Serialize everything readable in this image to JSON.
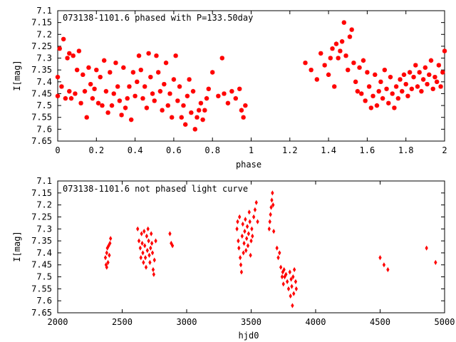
{
  "chart_data": [
    {
      "type": "scatter",
      "title": "073138-1101.6 phased with P=133.50day",
      "xlabel": "phase",
      "ylabel": "I[mag]",
      "xlim": [
        0,
        2
      ],
      "ylim": [
        7.1,
        7.65
      ],
      "y_inverted": true,
      "x_ticks": [
        "0",
        "0.2",
        "0.4",
        "0.6",
        "0.8",
        "1",
        "1.2",
        "1.4",
        "1.6",
        "1.8",
        "2"
      ],
      "y_ticks": [
        "7.1",
        "7.15",
        "7.2",
        "7.25",
        "7.3",
        "7.35",
        "7.4",
        "7.45",
        "7.5",
        "7.55",
        "7.6",
        "7.65"
      ],
      "marker_color": "#ff0000",
      "series": [
        {
          "points": [
            [
              0.0,
              7.38
            ],
            [
              0.0,
              7.46
            ],
            [
              0.01,
              7.26
            ],
            [
              0.02,
              7.42
            ],
            [
              0.03,
              7.22
            ],
            [
              0.04,
              7.47
            ],
            [
              0.05,
              7.3
            ],
            [
              0.06,
              7.28
            ],
            [
              0.06,
              7.44
            ],
            [
              0.07,
              7.47
            ],
            [
              0.08,
              7.29
            ],
            [
              0.09,
              7.45
            ],
            [
              0.1,
              7.35
            ],
            [
              0.11,
              7.27
            ],
            [
              0.12,
              7.49
            ],
            [
              0.13,
              7.37
            ],
            [
              0.14,
              7.44
            ],
            [
              0.15,
              7.55
            ],
            [
              0.16,
              7.34
            ],
            [
              0.17,
              7.41
            ],
            [
              0.18,
              7.47
            ],
            [
              0.19,
              7.43
            ],
            [
              0.2,
              7.35
            ],
            [
              0.21,
              7.49
            ],
            [
              0.22,
              7.38
            ],
            [
              0.23,
              7.5
            ],
            [
              0.24,
              7.31
            ],
            [
              0.25,
              7.44
            ],
            [
              0.26,
              7.53
            ],
            [
              0.27,
              7.36
            ],
            [
              0.28,
              7.5
            ],
            [
              0.29,
              7.45
            ],
            [
              0.3,
              7.32
            ],
            [
              0.31,
              7.42
            ],
            [
              0.32,
              7.48
            ],
            [
              0.33,
              7.54
            ],
            [
              0.34,
              7.34
            ],
            [
              0.35,
              7.51
            ],
            [
              0.36,
              7.47
            ],
            [
              0.37,
              7.42
            ],
            [
              0.38,
              7.56
            ],
            [
              0.39,
              7.36
            ],
            [
              0.4,
              7.46
            ],
            [
              0.41,
              7.4
            ],
            [
              0.42,
              7.29
            ],
            [
              0.43,
              7.35
            ],
            [
              0.44,
              7.47
            ],
            [
              0.45,
              7.42
            ],
            [
              0.46,
              7.51
            ],
            [
              0.47,
              7.28
            ],
            [
              0.48,
              7.38
            ],
            [
              0.49,
              7.45
            ],
            [
              0.5,
              7.48
            ],
            [
              0.51,
              7.29
            ],
            [
              0.52,
              7.36
            ],
            [
              0.53,
              7.44
            ],
            [
              0.54,
              7.52
            ],
            [
              0.55,
              7.41
            ],
            [
              0.56,
              7.32
            ],
            [
              0.57,
              7.5
            ],
            [
              0.58,
              7.45
            ],
            [
              0.59,
              7.55
            ],
            [
              0.6,
              7.39
            ],
            [
              0.61,
              7.29
            ],
            [
              0.62,
              7.48
            ],
            [
              0.63,
              7.42
            ],
            [
              0.64,
              7.55
            ],
            [
              0.65,
              7.5
            ],
            [
              0.66,
              7.58
            ],
            [
              0.67,
              7.46
            ],
            [
              0.68,
              7.39
            ],
            [
              0.69,
              7.53
            ],
            [
              0.7,
              7.44
            ],
            [
              0.71,
              7.6
            ],
            [
              0.72,
              7.55
            ],
            [
              0.73,
              7.52
            ],
            [
              0.74,
              7.49
            ],
            [
              0.75,
              7.56
            ],
            [
              0.76,
              7.52
            ],
            [
              0.77,
              7.47
            ],
            [
              0.78,
              7.43
            ],
            [
              0.8,
              7.36
            ],
            [
              0.83,
              7.46
            ],
            [
              0.85,
              7.3
            ],
            [
              0.86,
              7.45
            ],
            [
              0.88,
              7.49
            ],
            [
              0.9,
              7.44
            ],
            [
              0.92,
              7.47
            ],
            [
              0.94,
              7.43
            ],
            [
              0.95,
              7.52
            ],
            [
              0.96,
              7.55
            ],
            [
              0.97,
              7.5
            ],
            [
              1.28,
              7.32
            ],
            [
              1.31,
              7.35
            ],
            [
              1.34,
              7.39
            ],
            [
              1.36,
              7.28
            ],
            [
              1.38,
              7.33
            ],
            [
              1.4,
              7.37
            ],
            [
              1.41,
              7.3
            ],
            [
              1.42,
              7.26
            ],
            [
              1.43,
              7.42
            ],
            [
              1.44,
              7.24
            ],
            [
              1.45,
              7.3
            ],
            [
              1.46,
              7.27
            ],
            [
              1.47,
              7.23
            ],
            [
              1.48,
              7.15
            ],
            [
              1.49,
              7.29
            ],
            [
              1.5,
              7.35
            ],
            [
              1.51,
              7.21
            ],
            [
              1.52,
              7.18
            ],
            [
              1.53,
              7.32
            ],
            [
              1.54,
              7.4
            ],
            [
              1.55,
              7.44
            ],
            [
              1.56,
              7.34
            ],
            [
              1.57,
              7.45
            ],
            [
              1.58,
              7.31
            ],
            [
              1.59,
              7.48
            ],
            [
              1.6,
              7.36
            ],
            [
              1.61,
              7.42
            ],
            [
              1.62,
              7.51
            ],
            [
              1.63,
              7.46
            ],
            [
              1.64,
              7.37
            ],
            [
              1.65,
              7.5
            ],
            [
              1.66,
              7.44
            ],
            [
              1.67,
              7.4
            ],
            [
              1.68,
              7.47
            ],
            [
              1.69,
              7.35
            ],
            [
              1.7,
              7.43
            ],
            [
              1.71,
              7.49
            ],
            [
              1.72,
              7.38
            ],
            [
              1.73,
              7.45
            ],
            [
              1.74,
              7.51
            ],
            [
              1.75,
              7.42
            ],
            [
              1.76,
              7.47
            ],
            [
              1.77,
              7.39
            ],
            [
              1.78,
              7.44
            ],
            [
              1.79,
              7.37
            ],
            [
              1.8,
              7.41
            ],
            [
              1.81,
              7.46
            ],
            [
              1.82,
              7.36
            ],
            [
              1.83,
              7.43
            ],
            [
              1.84,
              7.38
            ],
            [
              1.85,
              7.33
            ],
            [
              1.86,
              7.42
            ],
            [
              1.87,
              7.36
            ],
            [
              1.88,
              7.44
            ],
            [
              1.89,
              7.39
            ],
            [
              1.9,
              7.34
            ],
            [
              1.91,
              7.41
            ],
            [
              1.92,
              7.37
            ],
            [
              1.93,
              7.31
            ],
            [
              1.94,
              7.43
            ],
            [
              1.95,
              7.38
            ],
            [
              1.96,
              7.4
            ],
            [
              1.97,
              7.33
            ],
            [
              1.98,
              7.42
            ],
            [
              1.99,
              7.36
            ],
            [
              2.0,
              7.27
            ]
          ]
        }
      ]
    },
    {
      "type": "scatter",
      "title": "073138-1101.6 not phased light curve",
      "xlabel": "hjd0",
      "ylabel": "I[mag]",
      "xlim": [
        2000,
        5000
      ],
      "ylim": [
        7.1,
        7.65
      ],
      "y_inverted": true,
      "x_ticks": [
        "2000",
        "2500",
        "3000",
        "3500",
        "4000",
        "4500",
        "5000"
      ],
      "y_ticks": [
        "7.1",
        "7.15",
        "7.2",
        "7.25",
        "7.3",
        "7.35",
        "7.4",
        "7.45",
        "7.5",
        "7.55",
        "7.6",
        "7.65"
      ],
      "marker_color": "#ff0000",
      "series": [
        {
          "points": [
            [
              2370,
              7.42
            ],
            [
              2375,
              7.45
            ],
            [
              2380,
              7.4
            ],
            [
              2385,
              7.38
            ],
            [
              2390,
              7.44
            ],
            [
              2395,
              7.37
            ],
            [
              2400,
              7.41
            ],
            [
              2405,
              7.36
            ],
            [
              2410,
              7.34
            ],
            [
              2380,
              7.46
            ],
            [
              2620,
              7.3
            ],
            [
              2630,
              7.35
            ],
            [
              2640,
              7.38
            ],
            [
              2645,
              7.42
            ],
            [
              2650,
              7.32
            ],
            [
              2655,
              7.36
            ],
            [
              2660,
              7.4
            ],
            [
              2665,
              7.44
            ],
            [
              2670,
              7.31
            ],
            [
              2675,
              7.37
            ],
            [
              2680,
              7.42
            ],
            [
              2685,
              7.46
            ],
            [
              2690,
              7.33
            ],
            [
              2695,
              7.39
            ],
            [
              2700,
              7.3
            ],
            [
              2705,
              7.35
            ],
            [
              2710,
              7.41
            ],
            [
              2715,
              7.44
            ],
            [
              2720,
              7.38
            ],
            [
              2725,
              7.32
            ],
            [
              2730,
              7.36
            ],
            [
              2735,
              7.4
            ],
            [
              2740,
              7.47
            ],
            [
              2745,
              7.49
            ],
            [
              2750,
              7.43
            ],
            [
              2760,
              7.35
            ],
            [
              2870,
              7.32
            ],
            [
              2880,
              7.36
            ],
            [
              2890,
              7.37
            ],
            [
              3390,
              7.3
            ],
            [
              3395,
              7.27
            ],
            [
              3400,
              7.35
            ],
            [
              3405,
              7.38
            ],
            [
              3410,
              7.25
            ],
            [
              3415,
              7.42
            ],
            [
              3420,
              7.45
            ],
            [
              3425,
              7.48
            ],
            [
              3430,
              7.33
            ],
            [
              3435,
              7.28
            ],
            [
              3440,
              7.4
            ],
            [
              3445,
              7.36
            ],
            [
              3450,
              7.31
            ],
            [
              3455,
              7.26
            ],
            [
              3460,
              7.39
            ],
            [
              3465,
              7.34
            ],
            [
              3470,
              7.29
            ],
            [
              3475,
              7.37
            ],
            [
              3480,
              7.32
            ],
            [
              3485,
              7.23
            ],
            [
              3490,
              7.27
            ],
            [
              3495,
              7.41
            ],
            [
              3500,
              7.35
            ],
            [
              3505,
              7.3
            ],
            [
              3510,
              7.33
            ],
            [
              3520,
              7.25
            ],
            [
              3530,
              7.22
            ],
            [
              3540,
              7.19
            ],
            [
              3550,
              7.27
            ],
            [
              3640,
              7.3
            ],
            [
              3645,
              7.27
            ],
            [
              3650,
              7.24
            ],
            [
              3655,
              7.21
            ],
            [
              3660,
              7.18
            ],
            [
              3665,
              7.15
            ],
            [
              3670,
              7.2
            ],
            [
              3675,
              7.31
            ],
            [
              3700,
              7.38
            ],
            [
              3710,
              7.42
            ],
            [
              3720,
              7.4
            ],
            [
              3730,
              7.46
            ],
            [
              3740,
              7.5
            ],
            [
              3745,
              7.48
            ],
            [
              3750,
              7.53
            ],
            [
              3755,
              7.47
            ],
            [
              3760,
              7.5
            ],
            [
              3770,
              7.49
            ],
            [
              3780,
              7.52
            ],
            [
              3790,
              7.55
            ],
            [
              3800,
              7.48
            ],
            [
              3805,
              7.58
            ],
            [
              3810,
              7.51
            ],
            [
              3815,
              7.54
            ],
            [
              3820,
              7.62
            ],
            [
              3825,
              7.5
            ],
            [
              3830,
              7.57
            ],
            [
              3835,
              7.47
            ],
            [
              3845,
              7.52
            ],
            [
              3850,
              7.55
            ],
            [
              4500,
              7.42
            ],
            [
              4530,
              7.45
            ],
            [
              4560,
              7.47
            ],
            [
              4860,
              7.38
            ],
            [
              4930,
              7.44
            ]
          ]
        }
      ]
    }
  ]
}
